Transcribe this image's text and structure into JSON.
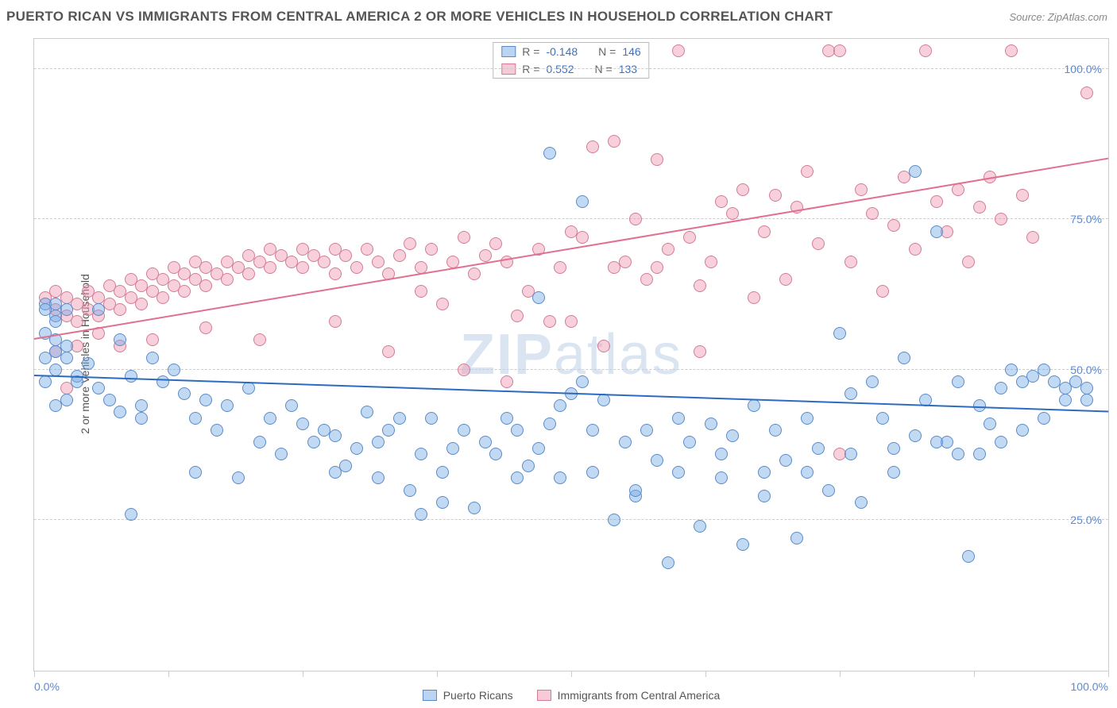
{
  "title": "PUERTO RICAN VS IMMIGRANTS FROM CENTRAL AMERICA 2 OR MORE VEHICLES IN HOUSEHOLD CORRELATION CHART",
  "source": "Source: ZipAtlas.com",
  "watermark": {
    "part1": "ZIP",
    "part2": "atlas"
  },
  "ylabel": "2 or more Vehicles in Household",
  "chart": {
    "type": "scatter",
    "xlim": [
      0,
      100
    ],
    "ylim": [
      0,
      105
    ],
    "yticks": [
      {
        "value": 25,
        "label": "25.0%"
      },
      {
        "value": 50,
        "label": "50.0%"
      },
      {
        "value": 75,
        "label": "75.0%"
      },
      {
        "value": 100,
        "label": "100.0%"
      }
    ],
    "xticks": [
      0,
      12.5,
      25,
      37.5,
      50,
      62.5,
      75,
      87.5,
      100
    ],
    "xtick_labels": {
      "first": "0.0%",
      "last": "100.0%"
    },
    "marker_radius": 8,
    "background_color": "#ffffff",
    "grid_color": "#cccccc"
  },
  "series": {
    "blue": {
      "label": "Puerto Ricans",
      "color_fill": "rgba(120,170,230,0.45)",
      "color_stroke": "#5a8bc9",
      "R": "-0.148",
      "N": "146",
      "trend": {
        "x0": 0,
        "y0": 49,
        "x1": 100,
        "y1": 43,
        "color": "#2d6bc0",
        "width": 2
      },
      "points": [
        [
          1,
          61
        ],
        [
          1,
          60
        ],
        [
          2,
          61
        ],
        [
          2,
          59
        ],
        [
          3,
          60
        ],
        [
          2,
          58
        ],
        [
          1,
          56
        ],
        [
          2,
          55
        ],
        [
          1,
          52
        ],
        [
          2,
          53
        ],
        [
          3,
          54
        ],
        [
          2,
          50
        ],
        [
          3,
          52
        ],
        [
          1,
          48
        ],
        [
          4,
          49
        ],
        [
          2,
          44
        ],
        [
          3,
          45
        ],
        [
          4,
          48
        ],
        [
          5,
          51
        ],
        [
          6,
          47
        ],
        [
          7,
          45
        ],
        [
          8,
          43
        ],
        [
          6,
          60
        ],
        [
          8,
          55
        ],
        [
          9,
          49
        ],
        [
          10,
          44
        ],
        [
          12,
          48
        ],
        [
          11,
          52
        ],
        [
          13,
          50
        ],
        [
          14,
          46
        ],
        [
          15,
          42
        ],
        [
          16,
          45
        ],
        [
          17,
          40
        ],
        [
          18,
          44
        ],
        [
          20,
          47
        ],
        [
          22,
          42
        ],
        [
          21,
          38
        ],
        [
          23,
          36
        ],
        [
          24,
          44
        ],
        [
          25,
          41
        ],
        [
          26,
          38
        ],
        [
          27,
          40
        ],
        [
          28,
          39
        ],
        [
          29,
          34
        ],
        [
          30,
          37
        ],
        [
          31,
          43
        ],
        [
          32,
          38
        ],
        [
          33,
          40
        ],
        [
          34,
          42
        ],
        [
          35,
          30
        ],
        [
          36,
          36
        ],
        [
          37,
          42
        ],
        [
          38,
          33
        ],
        [
          39,
          37
        ],
        [
          40,
          40
        ],
        [
          42,
          38
        ],
        [
          43,
          36
        ],
        [
          44,
          42
        ],
        [
          45,
          40
        ],
        [
          46,
          34
        ],
        [
          47,
          37
        ],
        [
          48,
          41
        ],
        [
          49,
          44
        ],
        [
          50,
          46
        ],
        [
          51,
          78
        ],
        [
          52,
          40
        ],
        [
          53,
          45
        ],
        [
          54,
          25
        ],
        [
          55,
          38
        ],
        [
          56,
          29
        ],
        [
          57,
          40
        ],
        [
          58,
          35
        ],
        [
          59,
          18
        ],
        [
          60,
          42
        ],
        [
          61,
          38
        ],
        [
          62,
          24
        ],
        [
          63,
          41
        ],
        [
          64,
          36
        ],
        [
          65,
          39
        ],
        [
          66,
          21
        ],
        [
          67,
          44
        ],
        [
          68,
          33
        ],
        [
          69,
          40
        ],
        [
          70,
          35
        ],
        [
          71,
          22
        ],
        [
          72,
          42
        ],
        [
          73,
          37
        ],
        [
          74,
          30
        ],
        [
          75,
          56
        ],
        [
          76,
          46
        ],
        [
          77,
          28
        ],
        [
          78,
          48
        ],
        [
          79,
          42
        ],
        [
          80,
          33
        ],
        [
          81,
          52
        ],
        [
          82,
          39
        ],
        [
          83,
          45
        ],
        [
          84,
          73
        ],
        [
          85,
          38
        ],
        [
          86,
          48
        ],
        [
          87,
          19
        ],
        [
          88,
          44
        ],
        [
          89,
          41
        ],
        [
          90,
          47
        ],
        [
          91,
          50
        ],
        [
          92,
          48
        ],
        [
          93,
          49
        ],
        [
          94,
          50
        ],
        [
          95,
          48
        ],
        [
          96,
          47
        ],
        [
          97,
          48
        ],
        [
          98,
          47
        ],
        [
          82,
          83
        ],
        [
          48,
          86
        ],
        [
          47,
          62
        ],
        [
          9,
          26
        ],
        [
          36,
          26
        ],
        [
          10,
          42
        ],
        [
          15,
          33
        ],
        [
          19,
          32
        ],
        [
          28,
          33
        ],
        [
          32,
          32
        ],
        [
          38,
          28
        ],
        [
          41,
          27
        ],
        [
          45,
          32
        ],
        [
          52,
          33
        ],
        [
          56,
          30
        ],
        [
          60,
          33
        ],
        [
          64,
          32
        ],
        [
          68,
          29
        ],
        [
          72,
          33
        ],
        [
          76,
          36
        ],
        [
          80,
          37
        ],
        [
          84,
          38
        ],
        [
          86,
          36
        ],
        [
          88,
          36
        ],
        [
          90,
          38
        ],
        [
          92,
          40
        ],
        [
          94,
          42
        ],
        [
          96,
          45
        ],
        [
          98,
          45
        ],
        [
          49,
          32
        ],
        [
          51,
          48
        ]
      ]
    },
    "pink": {
      "label": "Immigrants from Central America",
      "color_fill": "rgba(240,150,175,0.45)",
      "color_stroke": "#d47b96",
      "R": "0.552",
      "N": "133",
      "trend": {
        "x0": 0,
        "y0": 55,
        "x1": 100,
        "y1": 85,
        "color": "#e0708f",
        "width": 2
      },
      "points": [
        [
          1,
          62
        ],
        [
          2,
          60
        ],
        [
          2,
          63
        ],
        [
          3,
          59
        ],
        [
          3,
          62
        ],
        [
          4,
          58
        ],
        [
          4,
          61
        ],
        [
          5,
          60
        ],
        [
          5,
          63
        ],
        [
          6,
          59
        ],
        [
          6,
          62
        ],
        [
          7,
          61
        ],
        [
          7,
          64
        ],
        [
          8,
          60
        ],
        [
          8,
          63
        ],
        [
          9,
          62
        ],
        [
          9,
          65
        ],
        [
          10,
          61
        ],
        [
          10,
          64
        ],
        [
          11,
          63
        ],
        [
          11,
          66
        ],
        [
          12,
          62
        ],
        [
          12,
          65
        ],
        [
          13,
          64
        ],
        [
          13,
          67
        ],
        [
          14,
          63
        ],
        [
          14,
          66
        ],
        [
          15,
          65
        ],
        [
          15,
          68
        ],
        [
          16,
          64
        ],
        [
          16,
          67
        ],
        [
          17,
          66
        ],
        [
          18,
          65
        ],
        [
          18,
          68
        ],
        [
          19,
          67
        ],
        [
          20,
          66
        ],
        [
          20,
          69
        ],
        [
          21,
          68
        ],
        [
          22,
          67
        ],
        [
          22,
          70
        ],
        [
          23,
          69
        ],
        [
          24,
          68
        ],
        [
          25,
          67
        ],
        [
          25,
          70
        ],
        [
          26,
          69
        ],
        [
          27,
          68
        ],
        [
          28,
          70
        ],
        [
          28,
          66
        ],
        [
          29,
          69
        ],
        [
          30,
          67
        ],
        [
          31,
          70
        ],
        [
          32,
          68
        ],
        [
          33,
          66
        ],
        [
          34,
          69
        ],
        [
          35,
          71
        ],
        [
          36,
          67
        ],
        [
          37,
          70
        ],
        [
          38,
          61
        ],
        [
          39,
          68
        ],
        [
          40,
          72
        ],
        [
          41,
          66
        ],
        [
          42,
          69
        ],
        [
          43,
          71
        ],
        [
          44,
          68
        ],
        [
          45,
          59
        ],
        [
          46,
          63
        ],
        [
          47,
          70
        ],
        [
          48,
          58
        ],
        [
          49,
          67
        ],
        [
          50,
          73
        ],
        [
          51,
          72
        ],
        [
          52,
          87
        ],
        [
          53,
          54
        ],
        [
          54,
          88
        ],
        [
          55,
          68
        ],
        [
          56,
          75
        ],
        [
          57,
          65
        ],
        [
          58,
          85
        ],
        [
          59,
          70
        ],
        [
          60,
          103
        ],
        [
          61,
          72
        ],
        [
          62,
          64
        ],
        [
          63,
          68
        ],
        [
          64,
          78
        ],
        [
          65,
          76
        ],
        [
          66,
          80
        ],
        [
          67,
          62
        ],
        [
          68,
          73
        ],
        [
          69,
          79
        ],
        [
          70,
          65
        ],
        [
          71,
          77
        ],
        [
          72,
          83
        ],
        [
          73,
          71
        ],
        [
          74,
          103
        ],
        [
          75,
          103
        ],
        [
          76,
          68
        ],
        [
          77,
          80
        ],
        [
          78,
          76
        ],
        [
          79,
          63
        ],
        [
          80,
          74
        ],
        [
          81,
          82
        ],
        [
          82,
          70
        ],
        [
          83,
          103
        ],
        [
          84,
          78
        ],
        [
          85,
          73
        ],
        [
          86,
          80
        ],
        [
          87,
          68
        ],
        [
          88,
          77
        ],
        [
          89,
          82
        ],
        [
          90,
          75
        ],
        [
          91,
          103
        ],
        [
          92,
          79
        ],
        [
          93,
          72
        ],
        [
          3,
          47
        ],
        [
          40,
          50
        ],
        [
          44,
          48
        ],
        [
          62,
          53
        ],
        [
          75,
          36
        ],
        [
          33,
          53
        ],
        [
          28,
          58
        ],
        [
          21,
          55
        ],
        [
          16,
          57
        ],
        [
          11,
          55
        ],
        [
          8,
          54
        ],
        [
          6,
          56
        ],
        [
          4,
          54
        ],
        [
          2,
          53
        ],
        [
          98,
          96
        ],
        [
          36,
          63
        ],
        [
          54,
          67
        ],
        [
          58,
          67
        ],
        [
          50,
          58
        ]
      ]
    }
  },
  "legend": {
    "stats": [
      {
        "series": "blue",
        "R_label": "R =",
        "N_label": "N ="
      },
      {
        "series": "pink",
        "R_label": "R =",
        "N_label": "N ="
      }
    ]
  }
}
